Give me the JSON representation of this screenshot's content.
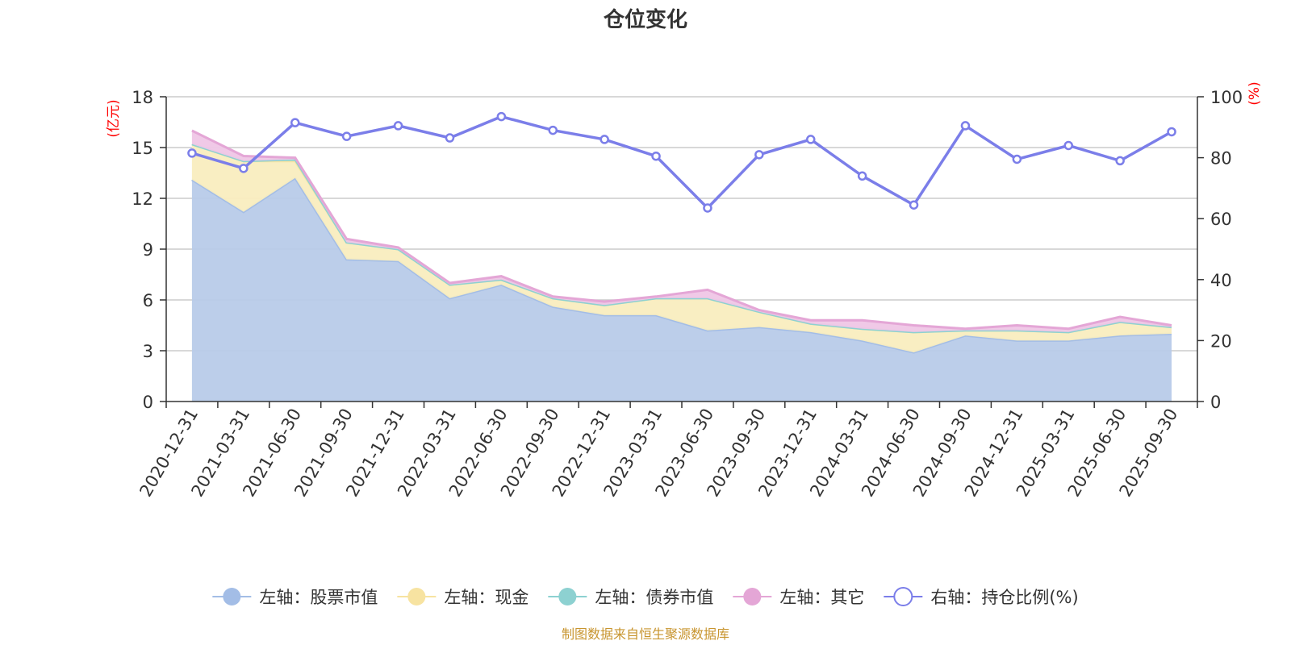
{
  "chart_data": {
    "type": "area",
    "title": "仓位变化",
    "left_axis_unit": "(亿元)",
    "right_axis_unit": "(%)",
    "ylim_left": [
      0,
      18
    ],
    "yticks_left": [
      0,
      3,
      6,
      9,
      12,
      15,
      18
    ],
    "ylim_right": [
      0,
      100
    ],
    "yticks_right": [
      0,
      20,
      40,
      60,
      80,
      100
    ],
    "categories": [
      "2020-12-31",
      "2021-03-31",
      "2021-06-30",
      "2021-09-30",
      "2021-12-31",
      "2022-03-31",
      "2022-06-30",
      "2022-09-30",
      "2022-12-31",
      "2023-03-31",
      "2023-06-30",
      "2023-09-30",
      "2023-12-31",
      "2024-03-31",
      "2024-06-30",
      "2024-09-30",
      "2024-12-31",
      "2025-03-31",
      "2025-06-30",
      "2025-09-30"
    ],
    "stacked_series": [
      {
        "name": "左轴：股票市值",
        "color": "#a3bde6",
        "fill": "#b8cbe9",
        "values": [
          13.1,
          11.2,
          13.2,
          8.4,
          8.3,
          6.1,
          6.9,
          5.6,
          5.1,
          5.1,
          4.2,
          4.4,
          4.1,
          3.6,
          2.9,
          3.9,
          3.6,
          3.6,
          3.9,
          4.0
        ]
      },
      {
        "name": "左轴：现金",
        "color": "#f7e3a1",
        "fill": "#f9edbf",
        "values": [
          2.1,
          3.0,
          1.0,
          1.0,
          0.7,
          0.8,
          0.3,
          0.5,
          0.6,
          1.0,
          1.9,
          0.9,
          0.5,
          0.7,
          1.2,
          0.3,
          0.6,
          0.5,
          0.8,
          0.4
        ]
      },
      {
        "name": "左轴：债券市值",
        "color": "#8dd1d1",
        "fill": "#a7dcdc",
        "values": [
          0,
          0,
          0.1,
          0,
          0,
          0,
          0,
          0,
          0,
          0,
          0,
          0,
          0,
          0,
          0,
          0,
          0,
          0,
          0,
          0
        ]
      },
      {
        "name": "左轴：其它",
        "color": "#e4a6d6",
        "fill": "#efc6e6",
        "values": [
          0.8,
          0.3,
          0.1,
          0.2,
          0.1,
          0.1,
          0.2,
          0.1,
          0.2,
          0.1,
          0.5,
          0.1,
          0.2,
          0.5,
          0.4,
          0.1,
          0.3,
          0.2,
          0.3,
          0.1
        ]
      }
    ],
    "line_series": {
      "name": "右轴：持仓比例(%)",
      "color": "#7b7ee9",
      "values": [
        81.5,
        76.5,
        91.5,
        87.0,
        90.5,
        86.5,
        93.5,
        89.0,
        86.0,
        80.5,
        63.5,
        81.0,
        86.0,
        74.0,
        64.5,
        90.5,
        79.5,
        84.0,
        79.0,
        88.5
      ]
    },
    "source_note": "制图数据来自恒生聚源数据库"
  }
}
